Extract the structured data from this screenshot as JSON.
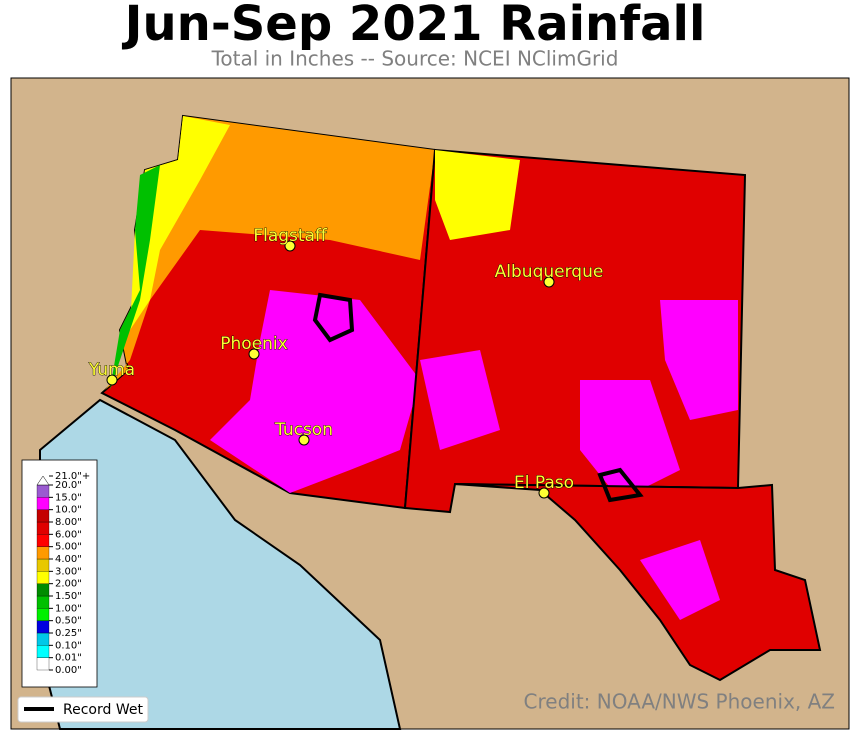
{
  "title": "Jun-Sep 2021 Rainfall",
  "subtitle": "Total in Inches -- Source: NCEI NClimGrid",
  "cities": [
    {
      "label": "Flagstaff"
    },
    {
      "label": "Albuquerque"
    },
    {
      "label": "Phoenix"
    },
    {
      "label": "Yuma"
    },
    {
      "label": "Tucson"
    },
    {
      "label": "El Paso"
    }
  ],
  "colorbar": {
    "labels": [
      "0.00\"",
      "0.01\"",
      "0.10\"",
      "0.25\"",
      "0.50\"",
      "1.00\"",
      "1.50\"",
      "2.00\"",
      "3.00\"",
      "4.00\"",
      "5.00\"",
      "6.00\"",
      "8.00\"",
      "10.0\"",
      "15.0\"",
      "20.0\"",
      "21.0\"+"
    ],
    "colors": [
      "#ffffff",
      "#00ffff",
      "#00c8e8",
      "#0000e0",
      "#00f000",
      "#00c000",
      "#008c00",
      "#ffff00",
      "#e8c800",
      "#ff9a00",
      "#ff0000",
      "#e00000",
      "#c40000",
      "#ff00ff",
      "#9a5ad0",
      "#ffffff"
    ]
  },
  "legend": {
    "label": "Record Wet"
  },
  "credit": "Credit: NOAA/NWS Phoenix, AZ"
}
